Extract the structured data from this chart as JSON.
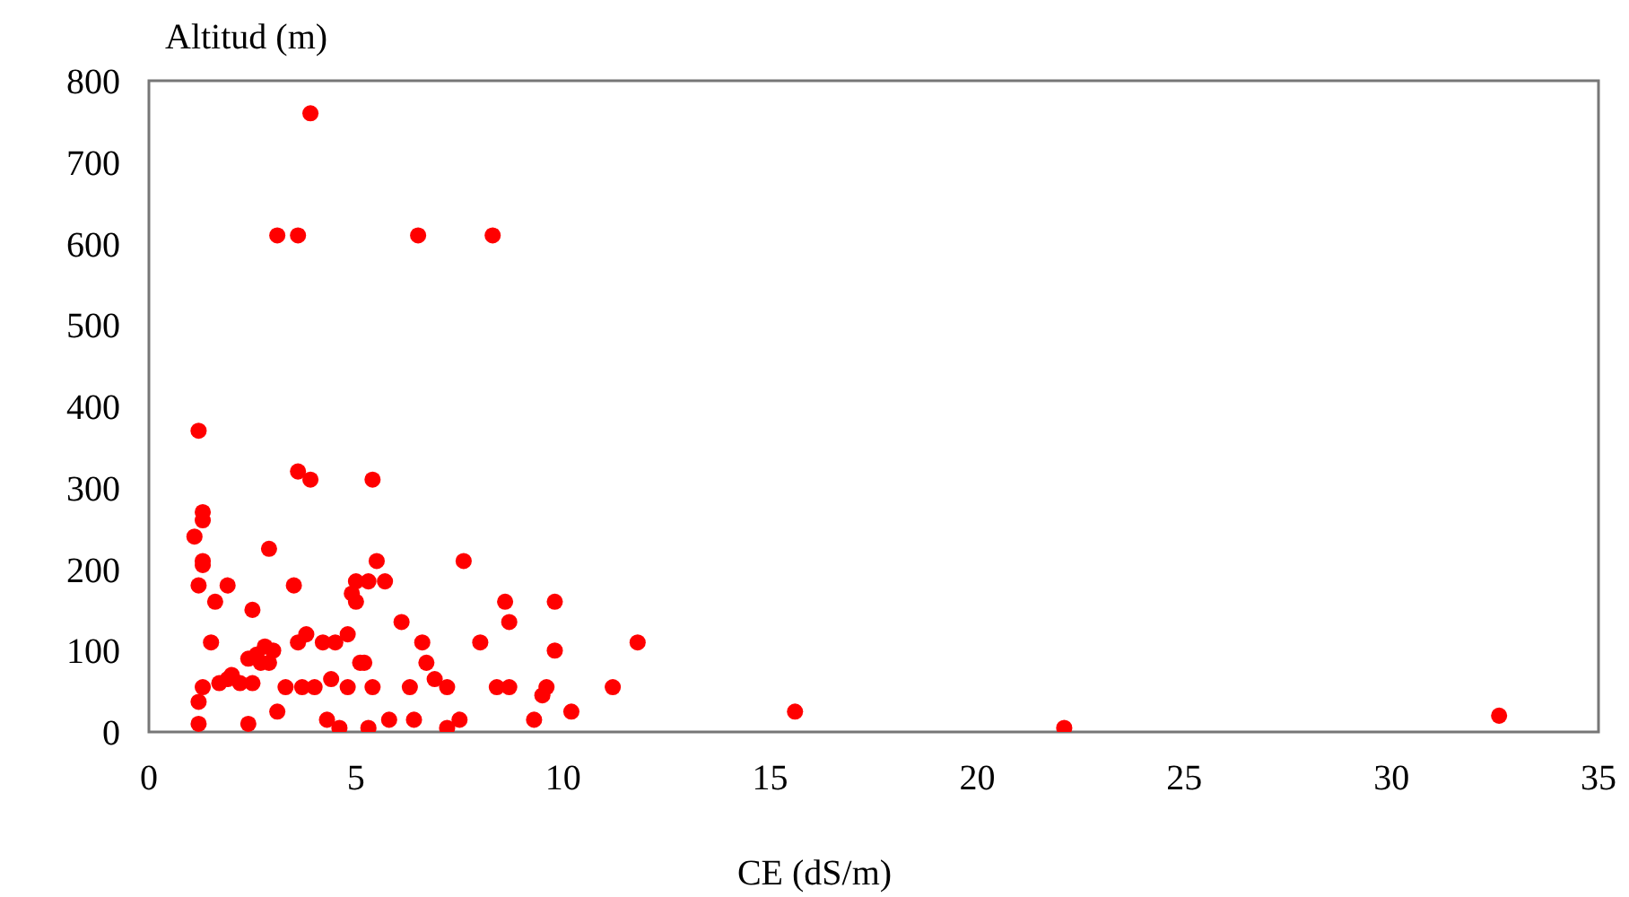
{
  "chart_data": {
    "type": "scatter",
    "xlabel": "CE (dS/m)",
    "ylabel": "Altitud (m)",
    "xlim": [
      0,
      35
    ],
    "xticks": [
      0,
      5,
      10,
      15,
      20,
      25,
      30,
      35
    ],
    "ylim": [
      0,
      800
    ],
    "yticks": [
      0,
      100,
      200,
      300,
      400,
      500,
      600,
      700,
      800
    ],
    "grid": false,
    "marker": "circle",
    "series": [
      {
        "color": "#ff0000",
        "x": [
          1.1,
          1.2,
          1.3,
          1.3,
          1.3,
          1.3,
          1.2,
          1.6,
          1.5,
          1.9,
          1.3,
          1.2,
          1.2,
          1.7,
          1.9,
          2.0,
          2.2,
          2.5,
          2.6,
          2.8,
          2.5,
          2.9,
          2.4,
          2.7,
          2.9,
          3.0,
          2.4,
          3.1,
          3.6,
          3.9,
          3.6,
          3.9,
          3.5,
          3.1,
          3.3,
          3.6,
          3.8,
          3.7,
          4.0,
          4.2,
          4.3,
          4.4,
          4.5,
          4.6,
          4.8,
          4.8,
          4.9,
          5.0,
          5.0,
          5.1,
          5.2,
          5.3,
          5.3,
          5.4,
          5.5,
          5.4,
          5.7,
          5.8,
          6.1,
          6.3,
          6.4,
          6.5,
          6.6,
          6.7,
          6.9,
          7.2,
          7.2,
          7.5,
          7.6,
          8.0,
          8.3,
          8.4,
          8.6,
          8.7,
          8.7,
          9.3,
          9.5,
          9.6,
          9.8,
          9.8,
          10.2,
          11.2,
          11.8,
          15.6,
          22.1,
          32.6
        ],
        "values": [
          240,
          370,
          270,
          260,
          210,
          205,
          180,
          160,
          110,
          180,
          55,
          37,
          10,
          60,
          65,
          70,
          60,
          60,
          95,
          105,
          150,
          225,
          90,
          85,
          85,
          100,
          10,
          610,
          610,
          760,
          320,
          310,
          180,
          25,
          55,
          110,
          120,
          55,
          55,
          110,
          15,
          65,
          110,
          5,
          120,
          55,
          170,
          185,
          160,
          85,
          85,
          5,
          185,
          310,
          210,
          55,
          185,
          15,
          135,
          55,
          15,
          610,
          110,
          85,
          65,
          55,
          5,
          15,
          210,
          110,
          610,
          55,
          160,
          135,
          55,
          15,
          45,
          55,
          100,
          160,
          25,
          55,
          110,
          25,
          5,
          20
        ]
      }
    ]
  }
}
